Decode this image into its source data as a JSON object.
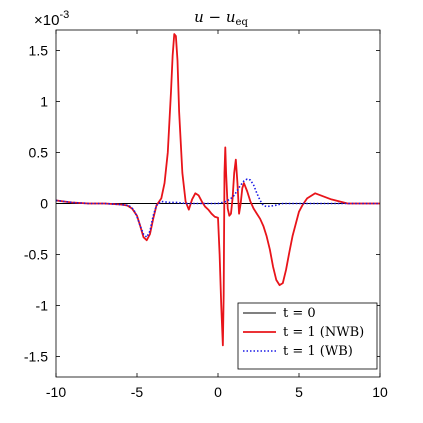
{
  "chart_data": {
    "type": "line",
    "title": "u − u",
    "title_subscript": "eq",
    "y_multiplier": "×10",
    "y_multiplier_exponent": "-3",
    "xlim": [
      -10,
      10
    ],
    "ylim": [
      -1.7,
      1.7
    ],
    "xticks": [
      -10,
      -5,
      0,
      5,
      10
    ],
    "xtick_labels": [
      "-10",
      "-5",
      "0",
      "5",
      "10"
    ],
    "yticks": [
      -1.5,
      -1,
      -0.5,
      0,
      0.5,
      1,
      1.5
    ],
    "ytick_labels": [
      "-1.5",
      "-1",
      "-0.5",
      "0",
      "0.5",
      "1",
      "1.5"
    ],
    "grid": false,
    "legend_position": "bottom-right",
    "series": [
      {
        "name": "t = 0",
        "color": "#000000",
        "style": "solid",
        "x": [
          -10,
          10
        ],
        "y": [
          0,
          0
        ]
      },
      {
        "name": "t = 1 (NWB)",
        "color": "#e8141a",
        "style": "solid",
        "x": [
          -10,
          -9.5,
          -9,
          -8,
          -7,
          -6,
          -5.6,
          -5.3,
          -5,
          -4.8,
          -4.6,
          -4.4,
          -4.2,
          -4.0,
          -3.8,
          -3.5,
          -3.3,
          -3.1,
          -2.9,
          -2.8,
          -2.7,
          -2.6,
          -2.5,
          -2.4,
          -2.2,
          -2.0,
          -1.8,
          -1.6,
          -1.4,
          -1.2,
          -1.0,
          -0.8,
          -0.6,
          -0.4,
          -0.2,
          0,
          0.1,
          0.2,
          0.3,
          0.35,
          0.4,
          0.45,
          0.5,
          0.6,
          0.7,
          0.8,
          0.9,
          1.0,
          1.1,
          1.2,
          1.3,
          1.4,
          1.5,
          1.6,
          1.8,
          2.0,
          2.2,
          2.4,
          2.6,
          2.8,
          3.0,
          3.2,
          3.4,
          3.6,
          3.8,
          4.0,
          4.2,
          4.4,
          4.6,
          4.8,
          5.0,
          5.2,
          5.5,
          6.0,
          7.0,
          8.0,
          9.0,
          10
        ],
        "y": [
          0.03,
          0.02,
          0.01,
          0,
          0,
          -0.01,
          -0.02,
          -0.05,
          -0.12,
          -0.22,
          -0.33,
          -0.36,
          -0.3,
          -0.15,
          -0.02,
          0.05,
          0.2,
          0.5,
          1.1,
          1.45,
          1.66,
          1.64,
          1.4,
          0.9,
          0.3,
          0.02,
          -0.06,
          0.04,
          0.1,
          0.08,
          0.02,
          -0.03,
          -0.06,
          -0.1,
          -0.13,
          -0.14,
          -0.5,
          -1.0,
          -1.39,
          -0.9,
          0.3,
          0.55,
          0.3,
          -0.05,
          -0.12,
          -0.1,
          0.05,
          0.3,
          0.43,
          0.2,
          -0.1,
          0.0,
          0.15,
          0.2,
          0.12,
          0.02,
          -0.05,
          -0.1,
          -0.15,
          -0.22,
          -0.32,
          -0.45,
          -0.62,
          -0.75,
          -0.8,
          -0.78,
          -0.65,
          -0.48,
          -0.32,
          -0.2,
          -0.08,
          -0.02,
          0.05,
          0.1,
          0.04,
          0.0,
          0.0,
          0.0
        ]
      },
      {
        "name": "t = 1 (WB)",
        "color": "#1a1ae6",
        "style": "dotted",
        "x": [
          -10,
          -9,
          -8,
          -7,
          -6,
          -5.5,
          -5.2,
          -5.0,
          -4.8,
          -4.6,
          -4.4,
          -4.2,
          -4.0,
          -3.8,
          -3.5,
          -3.0,
          -2.5,
          -2.0,
          -1.5,
          -1.0,
          -0.5,
          0,
          0.5,
          0.8,
          1.0,
          1.2,
          1.4,
          1.6,
          1.8,
          2.0,
          2.2,
          2.4,
          2.6,
          2.8,
          3.0,
          3.5,
          4.0,
          5.0,
          6.0,
          7.0,
          8.0,
          9.0,
          10
        ],
        "y": [
          0.03,
          0.01,
          0,
          0,
          -0.01,
          -0.02,
          -0.06,
          -0.13,
          -0.22,
          -0.3,
          -0.33,
          -0.27,
          -0.12,
          -0.02,
          0.02,
          0.01,
          0.01,
          0.0,
          0.0,
          0.0,
          0.0,
          0.0,
          0.02,
          0.05,
          0.08,
          0.13,
          0.18,
          0.22,
          0.24,
          0.23,
          0.18,
          0.1,
          0.03,
          -0.02,
          -0.03,
          -0.02,
          0.0,
          0.0,
          0.0,
          0.0,
          0.0,
          0.0,
          0.0
        ]
      }
    ]
  }
}
